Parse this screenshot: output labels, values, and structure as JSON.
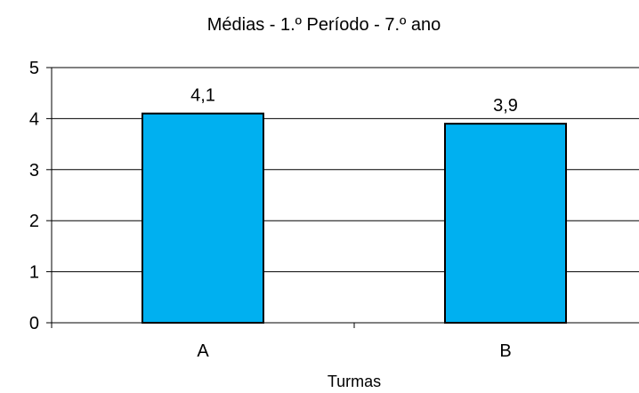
{
  "chart_data": {
    "type": "bar",
    "title": "Médias - 1.º Período - 7.º ano",
    "xlabel": "Turmas",
    "ylabel": "",
    "categories": [
      "A",
      "B"
    ],
    "values": [
      4.1,
      3.9
    ],
    "data_labels": [
      "4,1",
      "3,9"
    ],
    "ylim": [
      0,
      5
    ],
    "yticks": [
      0,
      1,
      2,
      3,
      4,
      5
    ],
    "grid": true,
    "legend": "none",
    "bar_color": "#00b0f0"
  }
}
